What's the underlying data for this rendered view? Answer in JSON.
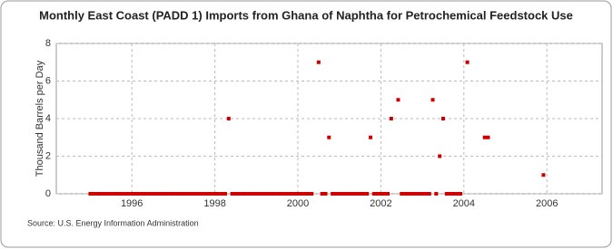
{
  "chart_data": {
    "type": "scatter",
    "title": "Monthly East Coast (PADD 1) Imports from Ghana of Naphtha for Petrochemical Feedstock Use",
    "y_label": "Thousand Barrels per Day",
    "source": "Source: U.S. Energy Information Administration",
    "color": "#cc0000",
    "x": [
      1995.0,
      1995.083,
      1995.167,
      1995.25,
      1995.333,
      1995.417,
      1995.5,
      1995.583,
      1995.667,
      1995.75,
      1995.833,
      1995.917,
      1996.0,
      1996.083,
      1996.167,
      1996.25,
      1996.333,
      1996.417,
      1996.5,
      1996.583,
      1996.667,
      1996.75,
      1996.833,
      1996.917,
      1997.0,
      1997.083,
      1997.167,
      1997.25,
      1997.333,
      1997.417,
      1997.5,
      1997.583,
      1997.667,
      1997.75,
      1997.833,
      1997.917,
      1998.0,
      1998.083,
      1998.167,
      1998.25,
      1998.333,
      1998.417,
      1998.5,
      1998.583,
      1998.667,
      1998.75,
      1998.833,
      1998.917,
      1999.0,
      1999.083,
      1999.167,
      1999.25,
      1999.333,
      1999.417,
      1999.5,
      1999.583,
      1999.667,
      1999.75,
      1999.833,
      1999.917,
      2000.0,
      2000.083,
      2000.167,
      2000.25,
      2000.333,
      2000.5,
      2000.583,
      2000.667,
      2000.75,
      2000.833,
      2000.917,
      2001.0,
      2001.083,
      2001.167,
      2001.25,
      2001.333,
      2001.417,
      2001.5,
      2001.583,
      2001.667,
      2001.75,
      2001.833,
      2001.917,
      2002.0,
      2002.083,
      2002.167,
      2002.25,
      2002.417,
      2002.5,
      2002.583,
      2002.667,
      2002.75,
      2002.833,
      2002.917,
      2003.0,
      2003.083,
      2003.167,
      2003.25,
      2003.333,
      2003.417,
      2003.5,
      2003.583,
      2003.667,
      2003.75,
      2003.833,
      2003.917,
      2004.083,
      2004.5,
      2004.583,
      2005.917
    ],
    "values": [
      0,
      0,
      0,
      0,
      0,
      0,
      0,
      0,
      0,
      0,
      0,
      0,
      0,
      0,
      0,
      0,
      0,
      0,
      0,
      0,
      0,
      0,
      0,
      0,
      0,
      0,
      0,
      0,
      0,
      0,
      0,
      0,
      0,
      0,
      0,
      0,
      0,
      0,
      0,
      0,
      4,
      0,
      0,
      0,
      0,
      0,
      0,
      0,
      0,
      0,
      0,
      0,
      0,
      0,
      0,
      0,
      0,
      0,
      0,
      0,
      0,
      0,
      0,
      0,
      0,
      7,
      0,
      0,
      3,
      0,
      0,
      0,
      0,
      0,
      0,
      0,
      0,
      0,
      0,
      0,
      3,
      0,
      0,
      0,
      0,
      0,
      4,
      5,
      0,
      0,
      0,
      0,
      0,
      0,
      0,
      0,
      0,
      5,
      0,
      2,
      4,
      0,
      0,
      0,
      0,
      0,
      7,
      3,
      3,
      1
    ],
    "xlim": [
      1994.18,
      2007.33
    ],
    "xticks": [
      1996,
      1998,
      2000,
      2002,
      2004,
      2006
    ],
    "ylim": [
      0,
      8
    ],
    "yticks": [
      0,
      2,
      4,
      6,
      8
    ],
    "grid": true
  }
}
